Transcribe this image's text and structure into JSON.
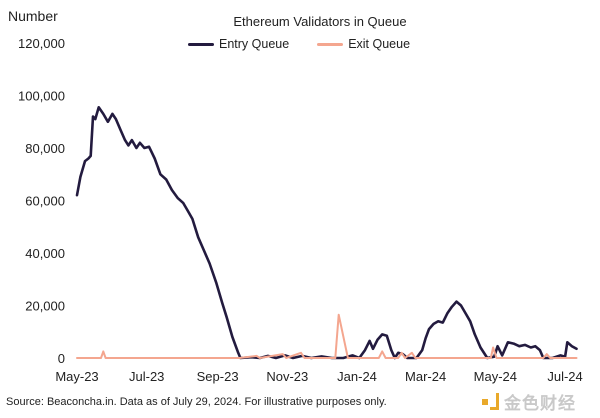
{
  "chart_data": {
    "type": "line",
    "title": "Ethereum Validators in Queue",
    "ylabel": "Number",
    "xlabel": "",
    "ylim": [
      0,
      120000
    ],
    "yticks": [
      "0",
      "20,000",
      "40,000",
      "60,000",
      "80,000",
      "100,000",
      "120,000"
    ],
    "ytick_values": [
      0,
      20000,
      40000,
      60000,
      80000,
      100000,
      120000
    ],
    "xlim": [
      "2023-05-01",
      "2024-07-31"
    ],
    "xticks": [
      "May-23",
      "Jul-23",
      "Sep-23",
      "Nov-23",
      "Jan-24",
      "Mar-24",
      "May-24",
      "Jul-24"
    ],
    "xtick_dates": [
      "2023-05-01",
      "2023-07-01",
      "2023-09-01",
      "2023-11-01",
      "2024-01-01",
      "2024-03-01",
      "2024-05-01",
      "2024-07-01"
    ],
    "grid": false,
    "legend_position": "top-center",
    "series": [
      {
        "name": "Entry Queue",
        "color": "#231b3f",
        "points": [
          [
            "2023-05-01",
            62000
          ],
          [
            "2023-05-04",
            69000
          ],
          [
            "2023-05-08",
            75000
          ],
          [
            "2023-05-11",
            76000
          ],
          [
            "2023-05-13",
            77000
          ],
          [
            "2023-05-15",
            92000
          ],
          [
            "2023-05-17",
            91000
          ],
          [
            "2023-05-20",
            95500
          ],
          [
            "2023-05-24",
            93000
          ],
          [
            "2023-05-28",
            90000
          ],
          [
            "2023-06-01",
            93000
          ],
          [
            "2023-06-04",
            91000
          ],
          [
            "2023-06-08",
            87000
          ],
          [
            "2023-06-12",
            83000
          ],
          [
            "2023-06-15",
            81000
          ],
          [
            "2023-06-18",
            83000
          ],
          [
            "2023-06-22",
            80000
          ],
          [
            "2023-06-25",
            82000
          ],
          [
            "2023-06-29",
            80000
          ],
          [
            "2023-07-03",
            80500
          ],
          [
            "2023-07-08",
            76000
          ],
          [
            "2023-07-13",
            70000
          ],
          [
            "2023-07-18",
            68000
          ],
          [
            "2023-07-23",
            64000
          ],
          [
            "2023-07-28",
            61000
          ],
          [
            "2023-08-02",
            59000
          ],
          [
            "2023-08-06",
            56000
          ],
          [
            "2023-08-10",
            53000
          ],
          [
            "2023-08-15",
            46000
          ],
          [
            "2023-08-20",
            41000
          ],
          [
            "2023-08-25",
            36000
          ],
          [
            "2023-08-31",
            28500
          ],
          [
            "2023-09-05",
            21000
          ],
          [
            "2023-09-09",
            15500
          ],
          [
            "2023-09-14",
            8000
          ],
          [
            "2023-09-19",
            2000
          ],
          [
            "2023-09-21",
            0
          ],
          [
            "2023-10-01",
            300
          ],
          [
            "2023-10-08",
            0
          ],
          [
            "2023-10-15",
            800
          ],
          [
            "2023-10-22",
            0
          ],
          [
            "2023-10-30",
            1000
          ],
          [
            "2023-11-06",
            0
          ],
          [
            "2023-11-14",
            800
          ],
          [
            "2023-11-22",
            0
          ],
          [
            "2023-12-01",
            600
          ],
          [
            "2023-12-10",
            0
          ],
          [
            "2023-12-20",
            0
          ],
          [
            "2023-12-28",
            1000
          ],
          [
            "2024-01-03",
            0
          ],
          [
            "2024-01-08",
            3000
          ],
          [
            "2024-01-12",
            6500
          ],
          [
            "2024-01-15",
            3500
          ],
          [
            "2024-01-19",
            7000
          ],
          [
            "2024-01-23",
            9000
          ],
          [
            "2024-01-27",
            8500
          ],
          [
            "2024-01-31",
            3000
          ],
          [
            "2024-02-03",
            0
          ],
          [
            "2024-02-06",
            2000
          ],
          [
            "2024-02-10",
            1500
          ],
          [
            "2024-02-14",
            0
          ],
          [
            "2024-02-22",
            0
          ],
          [
            "2024-02-27",
            3000
          ],
          [
            "2024-03-01",
            7500
          ],
          [
            "2024-03-04",
            11000
          ],
          [
            "2024-03-08",
            13000
          ],
          [
            "2024-03-12",
            14000
          ],
          [
            "2024-03-16",
            13500
          ],
          [
            "2024-03-20",
            17000
          ],
          [
            "2024-03-24",
            19500
          ],
          [
            "2024-03-28",
            21500
          ],
          [
            "2024-04-01",
            20000
          ],
          [
            "2024-04-05",
            17000
          ],
          [
            "2024-04-09",
            14000
          ],
          [
            "2024-04-13",
            9000
          ],
          [
            "2024-04-18",
            4000
          ],
          [
            "2024-04-24",
            0
          ],
          [
            "2024-04-30",
            500
          ],
          [
            "2024-05-03",
            4500
          ],
          [
            "2024-05-07",
            1000
          ],
          [
            "2024-05-12",
            6000
          ],
          [
            "2024-05-17",
            5500
          ],
          [
            "2024-05-22",
            4500
          ],
          [
            "2024-05-27",
            5000
          ],
          [
            "2024-06-01",
            4000
          ],
          [
            "2024-06-05",
            4500
          ],
          [
            "2024-06-09",
            3000
          ],
          [
            "2024-06-12",
            0
          ],
          [
            "2024-06-20",
            0
          ],
          [
            "2024-06-27",
            1000
          ],
          [
            "2024-07-01",
            500
          ],
          [
            "2024-07-03",
            6000
          ],
          [
            "2024-07-07",
            4500
          ],
          [
            "2024-07-11",
            3500
          ]
        ]
      },
      {
        "name": "Exit Queue",
        "color": "#f4a68f",
        "points": [
          [
            "2023-05-01",
            0
          ],
          [
            "2023-05-22",
            0
          ],
          [
            "2023-05-24",
            2500
          ],
          [
            "2023-05-26",
            0
          ],
          [
            "2023-09-20",
            0
          ],
          [
            "2023-10-05",
            800
          ],
          [
            "2023-10-08",
            0
          ],
          [
            "2023-10-28",
            1500
          ],
          [
            "2023-10-31",
            0
          ],
          [
            "2023-11-13",
            2000
          ],
          [
            "2023-11-16",
            0
          ],
          [
            "2023-12-13",
            0
          ],
          [
            "2023-12-16",
            16500
          ],
          [
            "2023-12-24",
            0
          ],
          [
            "2024-01-20",
            0
          ],
          [
            "2024-01-23",
            2500
          ],
          [
            "2024-01-26",
            0
          ],
          [
            "2024-02-06",
            0
          ],
          [
            "2024-02-09",
            2000
          ],
          [
            "2024-02-12",
            0
          ],
          [
            "2024-02-18",
            2000
          ],
          [
            "2024-02-21",
            0
          ],
          [
            "2024-04-27",
            0
          ],
          [
            "2024-04-29",
            4000
          ],
          [
            "2024-05-02",
            0
          ],
          [
            "2024-06-12",
            0
          ],
          [
            "2024-06-15",
            1500
          ],
          [
            "2024-06-18",
            0
          ],
          [
            "2024-07-11",
            0
          ]
        ]
      }
    ]
  },
  "footer": {
    "source": "Source: Beaconcha.in. Data as of July 29, 2024. For illustrative purposes only."
  },
  "logo": {
    "text": "金色财经"
  }
}
